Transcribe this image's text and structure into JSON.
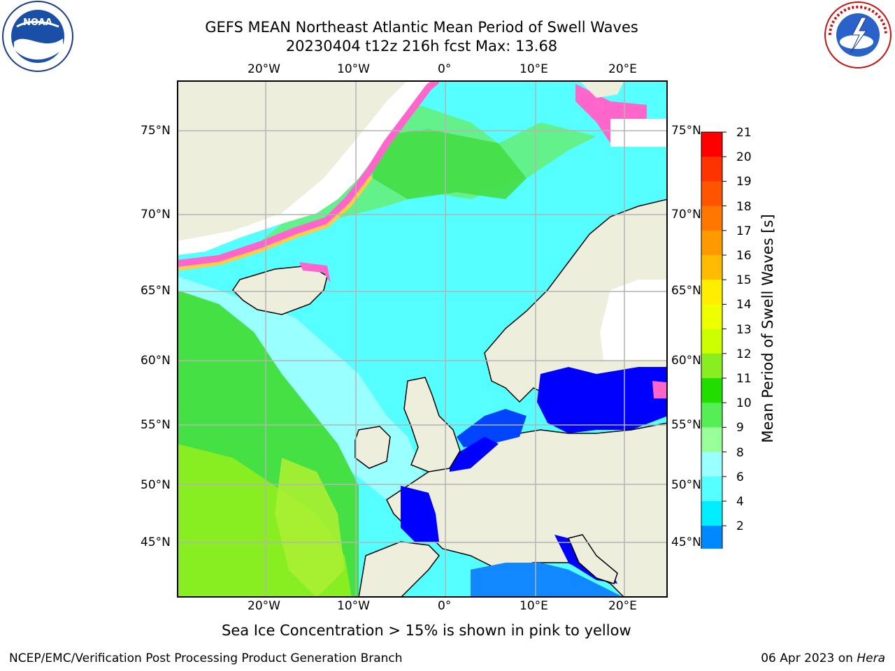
{
  "title": {
    "line1": "GEFS MEAN Northeast Atlantic Mean Period of Swell Waves",
    "line2": "20230404 t12z 216h fcst   Max: 13.68"
  },
  "map": {
    "lon_labels": [
      "20°W",
      "10°W",
      "0°",
      "10°E",
      "20°E"
    ],
    "lat_labels_left": [
      "75°N",
      "70°N",
      "65°N",
      "60°N",
      "55°N",
      "50°N",
      "45°N"
    ],
    "lat_labels_right": [
      "75°N",
      "70°N",
      "65°N",
      "60°N",
      "55°N",
      "50°N",
      "45°N"
    ],
    "colors": {
      "land": "#eeeedd",
      "ocean_main": "#55ffff",
      "frame": "#000000",
      "grid": "#b4b4b4"
    }
  },
  "colorbar": {
    "label": "Mean Period of Swell Waves [s]",
    "ticks": [
      "21",
      "20",
      "19",
      "18",
      "17",
      "16",
      "15",
      "14",
      "13",
      "12",
      "11",
      "10",
      "9",
      "8",
      "6",
      "4",
      "2"
    ],
    "colors": [
      "#ff0000",
      "#ff3300",
      "#ff5500",
      "#ff7700",
      "#ff9900",
      "#ffbb00",
      "#ffee00",
      "#eeff00",
      "#ccff00",
      "#88ee22",
      "#22dd00",
      "#55ee55",
      "#99ff99",
      "#99ffff",
      "#55ffff",
      "#00eeff",
      "#0088ff"
    ],
    "under_color": "#0000ff"
  },
  "note": "Sea Ice Concentration > 15% is shown in pink to yellow",
  "footer": {
    "left": "NCEP/EMC/Verification Post Processing Product Generation Branch",
    "right_date": "06 Apr 2023 on ",
    "right_machine": "Hera"
  },
  "logos": {
    "noaa_text": "NOAA",
    "nws_text": "NATIONAL WEATHER SERVICE"
  }
}
